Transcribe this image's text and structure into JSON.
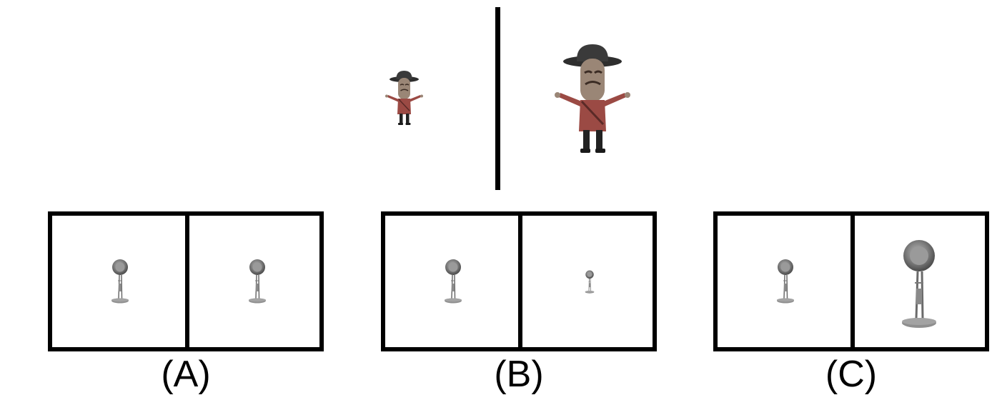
{
  "panels": [
    {
      "label": "(A)"
    },
    {
      "label": "(B)"
    },
    {
      "label": "(C)"
    }
  ],
  "colors": {
    "frame": "#000000",
    "hat": "#2e2e2e",
    "face": "#9a8676",
    "shirt": "#9b4a44",
    "legs": "#222222",
    "lamp": "#8f8f8f",
    "lamp_dark": "#5a5a5a"
  },
  "icons": {
    "top_left": "cowboy-character-small",
    "top_right": "cowboy-character-large",
    "panel_item": "desk-lamp"
  }
}
